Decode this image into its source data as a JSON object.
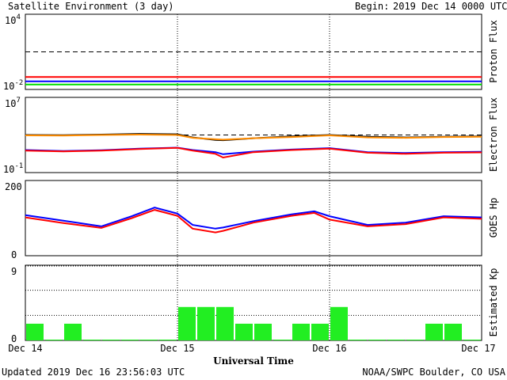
{
  "header": {
    "title": "Satellite Environment (3 day)",
    "begin_label": "Begin:",
    "begin_value": "2019 Dec 14 0000 UTC"
  },
  "footer": {
    "updated": "Updated 2019 Dec 16 23:56:03 UTC",
    "credit": "NOAA/SWPC Boulder, CO USA"
  },
  "chart_data": [
    {
      "type": "line",
      "panel": "proton",
      "ylabel": "Proton Flux",
      "y_scale": "log",
      "ylim": [
        0.01,
        10000
      ],
      "ytick_labels": [
        {
          "base": "10",
          "exp": "4"
        },
        {
          "base": "10",
          "exp": "-2"
        }
      ],
      "threshold": 10,
      "x": [
        0,
        0.5,
        1,
        1.5,
        2,
        2.5,
        3
      ],
      "series": [
        {
          "color": "#ff0000",
          "values": [
            0.1,
            0.1,
            0.1,
            0.1,
            0.1,
            0.1,
            0.1
          ]
        },
        {
          "color": "#0000ff",
          "values": [
            0.045,
            0.045,
            0.045,
            0.045,
            0.045,
            0.045,
            0.045
          ]
        },
        {
          "color": "#00dd00",
          "values": [
            0.025,
            0.025,
            0.025,
            0.025,
            0.025,
            0.025,
            0.025
          ]
        }
      ]
    },
    {
      "type": "line",
      "panel": "electron",
      "ylabel": "Electron Flux",
      "y_scale": "log",
      "ylim": [
        0.1,
        10000000
      ],
      "ytick_labels": [
        {
          "base": "10",
          "exp": "7"
        },
        {
          "base": "10",
          "exp": "-1"
        }
      ],
      "threshold": 1000,
      "x": [
        0,
        0.25,
        0.5,
        0.75,
        1,
        1.1,
        1.25,
        1.3,
        1.5,
        1.75,
        2,
        2.25,
        2.5,
        2.75,
        3
      ],
      "series": [
        {
          "color": "#000000",
          "values": [
            1000,
            950,
            1100,
            1300,
            1200,
            550,
            300,
            280,
            450,
            700,
            1000,
            650,
            550,
            650,
            700
          ]
        },
        {
          "color": "#ff8c00",
          "values": [
            900,
            850,
            1000,
            1100,
            1000,
            500,
            350,
            320,
            450,
            600,
            900,
            550,
            500,
            600,
            650
          ]
        },
        {
          "color": "#0000ff",
          "values": [
            25,
            20,
            24,
            35,
            45,
            25,
            15,
            9,
            17,
            28,
            40,
            15,
            12,
            15,
            16
          ]
        },
        {
          "color": "#ff0000",
          "values": [
            22,
            18,
            22,
            32,
            42,
            22,
            10,
            4,
            15,
            25,
            35,
            13,
            10,
            13,
            14
          ]
        }
      ]
    },
    {
      "type": "line",
      "panel": "goes_hp",
      "ylabel": "GOES Hp",
      "ylim": [
        0,
        200
      ],
      "ytick_labels": [
        "200",
        "0"
      ],
      "x": [
        0,
        0.25,
        0.5,
        0.7,
        0.85,
        1,
        1.1,
        1.25,
        1.3,
        1.5,
        1.75,
        1.9,
        2,
        2.25,
        2.5,
        2.75,
        3
      ],
      "series": [
        {
          "color": "#0000ff",
          "values": [
            108,
            93,
            78,
            105,
            128,
            112,
            82,
            72,
            75,
            92,
            110,
            118,
            105,
            82,
            88,
            105,
            102
          ]
        },
        {
          "color": "#ff0000",
          "values": [
            102,
            87,
            74,
            100,
            122,
            106,
            72,
            62,
            66,
            88,
            106,
            114,
            96,
            78,
            84,
            102,
            98
          ]
        }
      ]
    },
    {
      "type": "bar",
      "panel": "kp",
      "ylabel": "Estimated Kp",
      "ylim": [
        0,
        9
      ],
      "ytick_labels": [
        "9",
        "0"
      ],
      "bar_color": "#22ee22",
      "values": [
        2,
        0,
        2,
        0,
        0,
        0,
        0,
        0,
        4,
        4,
        4,
        2,
        2,
        0,
        2,
        2,
        4,
        0,
        0,
        0,
        0,
        2,
        2,
        0
      ]
    }
  ],
  "xaxis": {
    "title": "Universal Time",
    "ticks": [
      "Dec 14",
      "Dec 15",
      "Dec 16",
      "Dec 17"
    ]
  }
}
